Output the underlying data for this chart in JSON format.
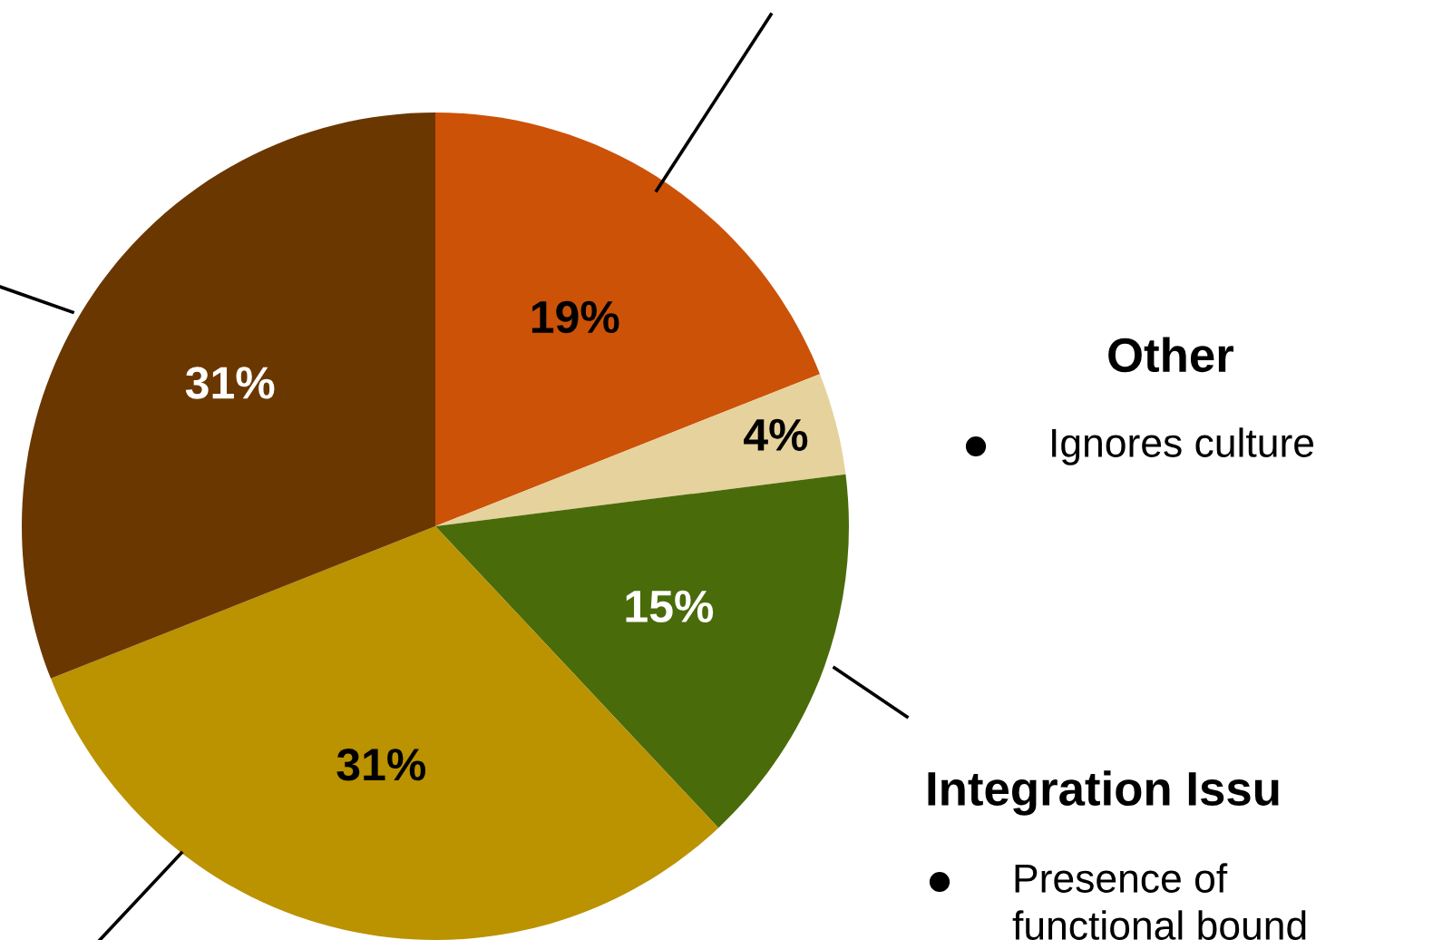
{
  "chart_data": {
    "type": "pie",
    "categories": [
      null,
      null,
      null,
      null,
      null
    ],
    "values": [
      19,
      4,
      15,
      31,
      31
    ],
    "colors": [
      "#cc5208",
      "#e6d29c",
      "#4a6b0a",
      "#bb9200",
      "#6b3700"
    ],
    "value_labels": [
      "19%",
      "4%",
      "15%",
      "31%",
      "31%"
    ],
    "annotations": [
      "Other",
      "Ignores culture",
      "Integration Issu",
      "Presence of",
      "functional bound"
    ]
  }
}
